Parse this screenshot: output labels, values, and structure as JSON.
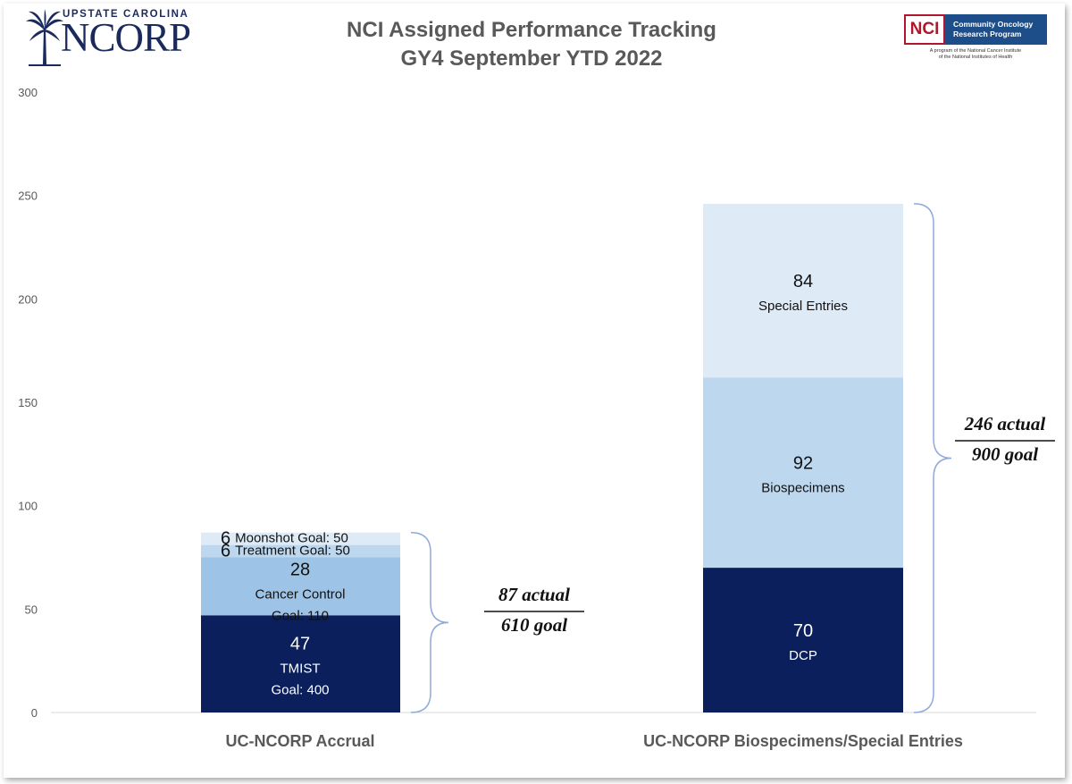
{
  "header": {
    "title_line1": "NCI Assigned Performance Tracking",
    "title_line2": "GY4 September YTD 2022",
    "left_logo": {
      "top_text": "UPSTATE CAROLINA",
      "main_text": "NCORP",
      "icon": "palmetto-tree-icon"
    },
    "right_logo": {
      "badge": "NCI",
      "program_line1": "Community Oncology",
      "program_line2": "Research Program",
      "sub_line1": "A program of the National Cancer Institute",
      "sub_line2": "of the National Institutes of Health",
      "badge_color": "#b2162a",
      "program_color": "#1d4e8a"
    }
  },
  "chart_data": {
    "type": "bar",
    "stacked": true,
    "ylim": [
      0,
      300
    ],
    "yticks": [
      0,
      50,
      100,
      150,
      200,
      250,
      300
    ],
    "grid": false,
    "categories": [
      "UC-NCORP Accrual",
      "UC-NCORP Biospecimens/Special Entries"
    ],
    "stacks": [
      {
        "category": "UC-NCORP Accrual",
        "segments": [
          {
            "value": 47,
            "labels": [
              "TMIST",
              "Goal: 400"
            ],
            "color": "#0b1f5c",
            "text_color": "#ffffff"
          },
          {
            "value": 28,
            "labels": [
              "Cancer Control",
              "Goal: 110"
            ],
            "color": "#9dc3e6",
            "text_color": "#111111"
          },
          {
            "value": 6,
            "labels": [
              "Treatment Goal: 50"
            ],
            "color": "#bdd7ee",
            "text_color": "#111111"
          },
          {
            "value": 6,
            "labels": [
              "Moonshot Goal: 50"
            ],
            "color": "#deebf7",
            "text_color": "#111111"
          }
        ],
        "total": {
          "actual": "87 actual",
          "goal": "610 goal"
        }
      },
      {
        "category": "UC-NCORP Biospecimens/Special Entries",
        "segments": [
          {
            "value": 70,
            "labels": [
              "DCP"
            ],
            "color": "#0b1f5c",
            "text_color": "#ffffff"
          },
          {
            "value": 92,
            "labels": [
              "Biospecimens"
            ],
            "color": "#bdd7ee",
            "text_color": "#111111"
          },
          {
            "value": 84,
            "labels": [
              "Special Entries"
            ],
            "color": "#deebf7",
            "text_color": "#111111"
          }
        ],
        "total": {
          "actual": "246 actual",
          "goal": "900 goal"
        }
      }
    ],
    "brace_color": "#8faadc"
  }
}
